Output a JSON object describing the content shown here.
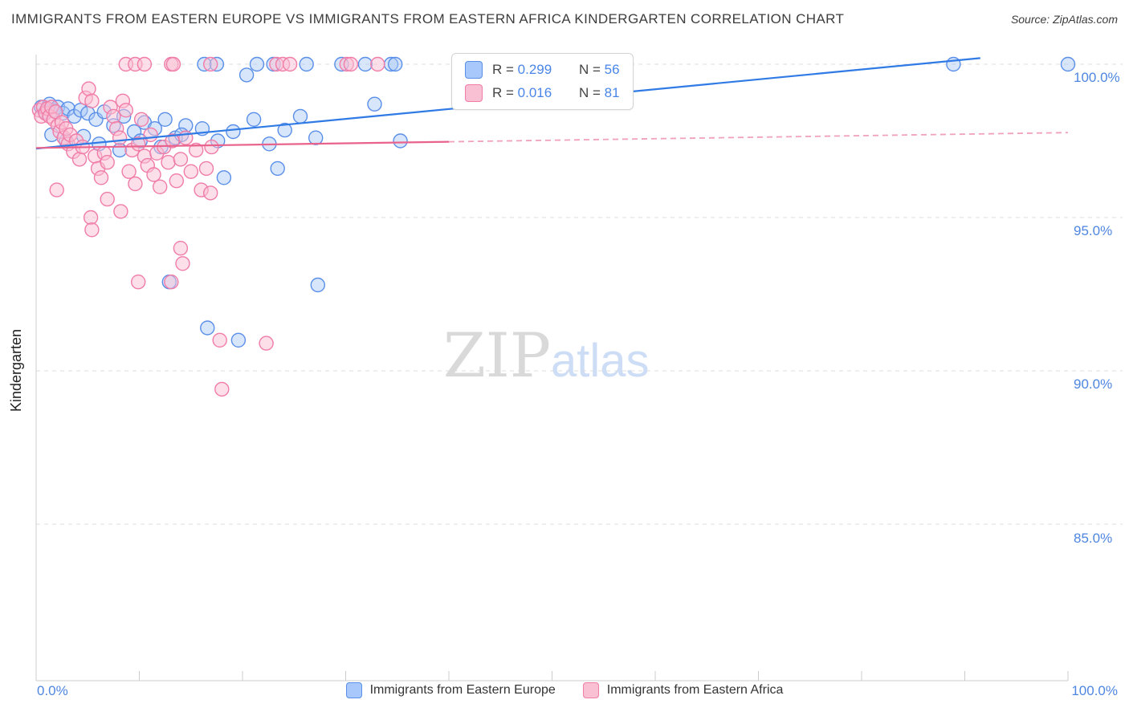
{
  "header": {
    "title": "IMMIGRANTS FROM EASTERN EUROPE VS IMMIGRANTS FROM EASTERN AFRICA KINDERGARTEN CORRELATION CHART",
    "source": "Source: ZipAtlas.com"
  },
  "axes": {
    "y_label": "Kindergarten",
    "x_min_label": "0.0%",
    "x_max_label": "100.0%",
    "y_tick_labels": [
      "100.0%",
      "95.0%",
      "90.0%",
      "85.0%"
    ]
  },
  "legend_box": {
    "rows": [
      {
        "series": "europe",
        "r_text": "R = ",
        "r_value": "0.299",
        "n_text": "N = ",
        "n_value": "56"
      },
      {
        "series": "africa",
        "r_text": "R = ",
        "r_value": "0.016",
        "n_text": "N = ",
        "n_value": "81"
      }
    ]
  },
  "bottom_legend": {
    "items": [
      {
        "label": "Immigrants from Eastern Europe",
        "fill": "#a8c7fa",
        "stroke": "#5a8fe8"
      },
      {
        "label": "Immigrants from Eastern Africa",
        "fill": "#f9c0d3",
        "stroke": "#f07ca8"
      }
    ]
  },
  "watermark": {
    "zip": "ZIP",
    "atlas": "atlas"
  },
  "chart_data": {
    "type": "scatter",
    "title": "Immigrants from Eastern Europe vs Immigrants from Eastern Africa Kindergarten",
    "xlabel": "",
    "ylabel": "Kindergarten",
    "xlim": [
      0,
      100
    ],
    "ylim": [
      80,
      100.5
    ],
    "grid": true,
    "gridlines_y": [
      100,
      95,
      90,
      85
    ],
    "legend_position": "bottom-center",
    "series": [
      {
        "name": "Immigrants from Eastern Europe",
        "R": 0.299,
        "N": 56,
        "color": "#5a8fe8",
        "fill": "#a9c7f7",
        "fill_opacity": 0.45,
        "trend_color": "#2f7ae5",
        "trend_solid": [
          [
            0,
            97.25
          ],
          [
            91.5,
            100.2
          ]
        ],
        "trend_dashed": null,
        "points": [
          [
            0.5,
            98.6
          ],
          [
            0.9,
            98.45
          ],
          [
            1.3,
            98.7
          ],
          [
            1.7,
            98.5
          ],
          [
            2.1,
            98.6
          ],
          [
            2.6,
            98.4
          ],
          [
            3.1,
            98.55
          ],
          [
            3.7,
            98.3
          ],
          [
            4.3,
            98.5
          ],
          [
            5.0,
            98.4
          ],
          [
            5.8,
            98.2
          ],
          [
            6.6,
            98.45
          ],
          [
            7.5,
            98.0
          ],
          [
            8.5,
            98.3
          ],
          [
            9.5,
            97.8
          ],
          [
            10.5,
            98.1
          ],
          [
            11.5,
            97.9
          ],
          [
            12.5,
            98.2
          ],
          [
            13.5,
            97.6
          ],
          [
            14.5,
            98.0
          ],
          [
            1.5,
            97.7
          ],
          [
            2.9,
            97.5
          ],
          [
            4.6,
            97.65
          ],
          [
            6.1,
            97.4
          ],
          [
            8.1,
            97.2
          ],
          [
            10.1,
            97.5
          ],
          [
            12.1,
            97.3
          ],
          [
            14.1,
            97.7
          ],
          [
            16.1,
            97.9
          ],
          [
            17.6,
            97.5
          ],
          [
            19.1,
            97.8
          ],
          [
            20.4,
            99.65
          ],
          [
            21.1,
            98.2
          ],
          [
            22.6,
            97.4
          ],
          [
            24.1,
            97.85
          ],
          [
            25.6,
            98.3
          ],
          [
            27.1,
            97.6
          ],
          [
            32.8,
            98.7
          ],
          [
            35.3,
            97.5
          ],
          [
            23.4,
            96.6
          ],
          [
            18.2,
            96.3
          ],
          [
            12.9,
            92.9
          ],
          [
            16.6,
            91.4
          ],
          [
            19.6,
            91.0
          ],
          [
            27.3,
            92.8
          ],
          [
            16.3,
            100.0
          ],
          [
            17.5,
            100.0
          ],
          [
            21.4,
            100.0
          ],
          [
            23.0,
            100.0
          ],
          [
            26.2,
            100.0
          ],
          [
            29.6,
            100.0
          ],
          [
            31.9,
            100.0
          ],
          [
            34.4,
            100.0
          ],
          [
            34.8,
            100.0
          ],
          [
            88.9,
            100.0
          ],
          [
            100.0,
            100.0
          ]
        ]
      },
      {
        "name": "Immigrants from Eastern Africa",
        "R": 0.016,
        "N": 81,
        "color": "#f07ca8",
        "fill": "#f9c0d3",
        "fill_opacity": 0.5,
        "trend_color": "#e8628c",
        "trend_solid": [
          [
            0,
            97.27
          ],
          [
            40,
            97.47
          ]
        ],
        "trend_dashed": [
          [
            40,
            97.47
          ],
          [
            100,
            97.77
          ]
        ],
        "points": [
          [
            0.3,
            98.5
          ],
          [
            0.5,
            98.3
          ],
          [
            0.7,
            98.6
          ],
          [
            0.9,
            98.4
          ],
          [
            1.1,
            98.55
          ],
          [
            1.3,
            98.3
          ],
          [
            1.5,
            98.6
          ],
          [
            1.7,
            98.2
          ],
          [
            1.9,
            98.45
          ],
          [
            2.1,
            98.0
          ],
          [
            2.3,
            97.8
          ],
          [
            2.5,
            98.1
          ],
          [
            2.7,
            97.6
          ],
          [
            2.9,
            97.9
          ],
          [
            3.1,
            97.4
          ],
          [
            3.3,
            97.7
          ],
          [
            3.6,
            97.15
          ],
          [
            3.9,
            97.5
          ],
          [
            4.2,
            96.9
          ],
          [
            4.5,
            97.3
          ],
          [
            4.8,
            98.9
          ],
          [
            5.1,
            99.2
          ],
          [
            5.4,
            98.8
          ],
          [
            5.7,
            97.0
          ],
          [
            6.0,
            96.6
          ],
          [
            6.3,
            96.3
          ],
          [
            6.6,
            97.1
          ],
          [
            6.9,
            96.8
          ],
          [
            7.2,
            98.6
          ],
          [
            7.5,
            98.3
          ],
          [
            7.8,
            97.9
          ],
          [
            8.1,
            97.6
          ],
          [
            8.4,
            98.8
          ],
          [
            8.7,
            98.5
          ],
          [
            9.0,
            96.5
          ],
          [
            9.3,
            97.2
          ],
          [
            9.6,
            96.1
          ],
          [
            9.9,
            97.4
          ],
          [
            10.2,
            98.2
          ],
          [
            10.5,
            97.0
          ],
          [
            10.8,
            96.7
          ],
          [
            11.1,
            97.7
          ],
          [
            11.4,
            96.4
          ],
          [
            11.7,
            97.1
          ],
          [
            12.0,
            96.0
          ],
          [
            12.4,
            97.3
          ],
          [
            12.8,
            96.8
          ],
          [
            13.2,
            97.5
          ],
          [
            13.6,
            96.2
          ],
          [
            14.0,
            96.9
          ],
          [
            14.5,
            97.6
          ],
          [
            15.0,
            96.5
          ],
          [
            15.5,
            97.2
          ],
          [
            16.0,
            95.9
          ],
          [
            16.5,
            96.6
          ],
          [
            17.0,
            97.3
          ],
          [
            2.0,
            95.9
          ],
          [
            5.3,
            95.0
          ],
          [
            5.4,
            94.6
          ],
          [
            8.2,
            95.2
          ],
          [
            9.9,
            92.9
          ],
          [
            13.1,
            92.9
          ],
          [
            14.0,
            94.0
          ],
          [
            14.2,
            93.5
          ],
          [
            17.8,
            91.0
          ],
          [
            18.0,
            89.4
          ],
          [
            22.3,
            90.9
          ],
          [
            6.9,
            95.6
          ],
          [
            16.9,
            95.8
          ],
          [
            8.7,
            100.0
          ],
          [
            9.6,
            100.0
          ],
          [
            10.5,
            100.0
          ],
          [
            13.1,
            100.0
          ],
          [
            13.3,
            100.0
          ],
          [
            16.9,
            100.0
          ],
          [
            23.3,
            100.0
          ],
          [
            23.9,
            100.0
          ],
          [
            24.6,
            100.0
          ],
          [
            30.1,
            100.0
          ],
          [
            30.5,
            100.0
          ],
          [
            33.1,
            100.0
          ]
        ]
      }
    ]
  }
}
